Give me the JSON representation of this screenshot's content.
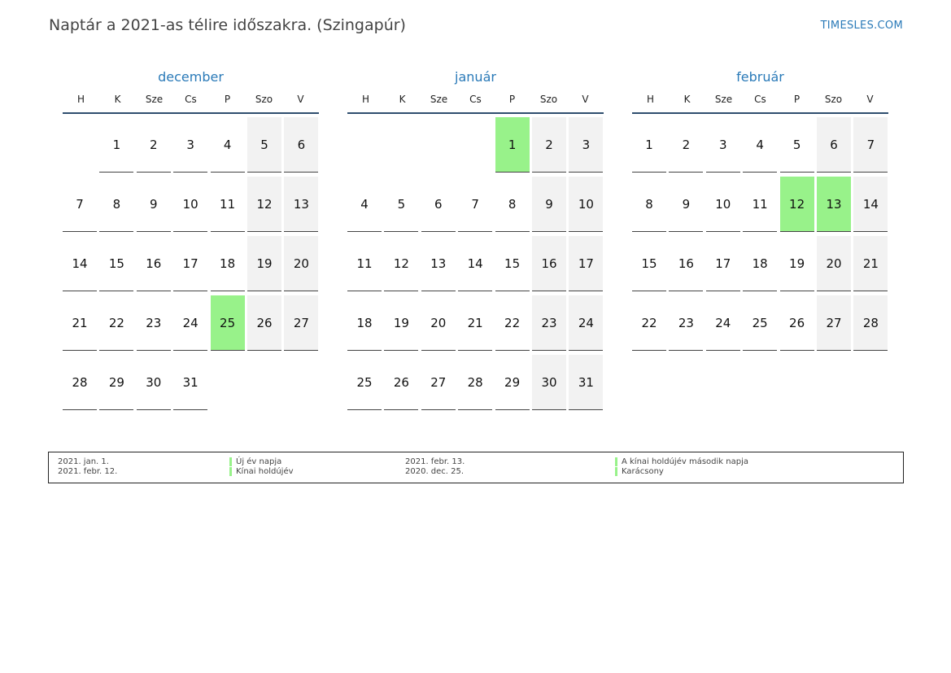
{
  "header": {
    "title": "Naptár a 2021-as télire időszakra. (Szingapúr)",
    "brand": "TIMESLES.COM"
  },
  "weekdays": [
    "H",
    "K",
    "Sze",
    "Cs",
    "P",
    "Szo",
    "V"
  ],
  "months": [
    {
      "name": "december",
      "weeks": [
        [
          "",
          "1",
          "2",
          "3",
          "4",
          "5",
          "6"
        ],
        [
          "7",
          "8",
          "9",
          "10",
          "11",
          "12",
          "13"
        ],
        [
          "14",
          "15",
          "16",
          "17",
          "18",
          "19",
          "20"
        ],
        [
          "21",
          "22",
          "23",
          "24",
          "25",
          "26",
          "27"
        ],
        [
          "28",
          "29",
          "30",
          "31",
          "",
          "",
          ""
        ]
      ],
      "holidays": [
        "25"
      ]
    },
    {
      "name": "január",
      "weeks": [
        [
          "",
          "",
          "",
          "",
          "1",
          "2",
          "3"
        ],
        [
          "4",
          "5",
          "6",
          "7",
          "8",
          "9",
          "10"
        ],
        [
          "11",
          "12",
          "13",
          "14",
          "15",
          "16",
          "17"
        ],
        [
          "18",
          "19",
          "20",
          "21",
          "22",
          "23",
          "24"
        ],
        [
          "25",
          "26",
          "27",
          "28",
          "29",
          "30",
          "31"
        ]
      ],
      "holidays": [
        "1"
      ]
    },
    {
      "name": "február",
      "weeks": [
        [
          "1",
          "2",
          "3",
          "4",
          "5",
          "6",
          "7"
        ],
        [
          "8",
          "9",
          "10",
          "11",
          "12",
          "13",
          "14"
        ],
        [
          "15",
          "16",
          "17",
          "18",
          "19",
          "20",
          "21"
        ],
        [
          "22",
          "23",
          "24",
          "25",
          "26",
          "27",
          "28"
        ]
      ],
      "holidays": [
        "12",
        "13"
      ]
    }
  ],
  "legend": [
    {
      "date": "2021. jan. 1.",
      "name": "Új év napja"
    },
    {
      "date": "2021. febr. 12.",
      "name": "Kínai holdújév"
    },
    {
      "date": "2021. febr. 13.",
      "name": "A kínai holdújév második napja"
    },
    {
      "date": "2020. dec. 25.",
      "name": "Karácsony"
    }
  ],
  "colors": {
    "accent": "#2a7ab8",
    "holiday": "#98f28a",
    "weekend": "#f2f2f2",
    "header_rule": "#2f4e6e"
  }
}
